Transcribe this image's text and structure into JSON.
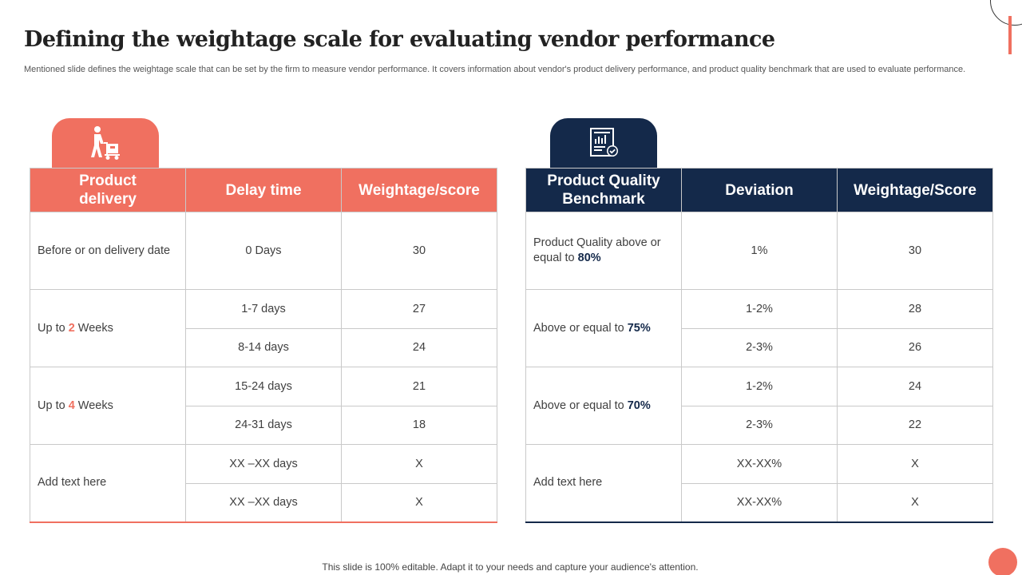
{
  "title": "Defining the weightage scale for evaluating vendor performance",
  "subtitle": "Mentioned slide defines the weightage scale that can be set by the firm to measure vendor performance. It covers information about vendor's product delivery performance, and product quality benchmark that are used to evaluate performance.",
  "colors": {
    "accent": "#f07060",
    "navy": "#14294a"
  },
  "delivery": {
    "icon": "delivery-worker-icon",
    "headers": [
      "Product delivery",
      "Delay time",
      "Weightage/score"
    ],
    "rows": {
      "r1": {
        "label": "Before or on delivery date",
        "time": "0 Days",
        "score": "30"
      },
      "g2": {
        "label_pre": "Up to ",
        "label_num": "2",
        "label_post": " Weeks",
        "a": {
          "time": "1-7 days",
          "score": "27"
        },
        "b": {
          "time": "8-14 days",
          "score": "24"
        }
      },
      "g3": {
        "label_pre": "Up to ",
        "label_num": "4",
        "label_post": " Weeks",
        "a": {
          "time": "15-24 days",
          "score": "21"
        },
        "b": {
          "time": "24-31 days",
          "score": "18"
        }
      },
      "g4": {
        "label": "Add text here",
        "a": {
          "time": "XX –XX days",
          "score": "X"
        },
        "b": {
          "time": "XX –XX days",
          "score": "X"
        }
      }
    }
  },
  "quality": {
    "icon": "quality-report-icon",
    "headers": [
      "Product Quality Benchmark",
      "Deviation",
      "Weightage/Score"
    ],
    "rows": {
      "r1": {
        "label_pre": "Product Quality above or equal to ",
        "label_num": "80%",
        "dev": "1%",
        "score": "30"
      },
      "g2": {
        "label_pre": "Above  or equal to ",
        "label_num": "75%",
        "a": {
          "dev": "1-2%",
          "score": "28"
        },
        "b": {
          "dev": "2-3%",
          "score": "26"
        }
      },
      "g3": {
        "label_pre": "Above  or equal to ",
        "label_num": "70%",
        "a": {
          "dev": "1-2%",
          "score": "24"
        },
        "b": {
          "dev": "2-3%",
          "score": "22"
        }
      },
      "g4": {
        "label": "Add text here",
        "a": {
          "dev": "XX-XX%",
          "score": "X"
        },
        "b": {
          "dev": "XX-XX%",
          "score": "X"
        }
      }
    }
  },
  "footer": "This slide is 100% editable. Adapt it to your needs and capture your audience's attention."
}
